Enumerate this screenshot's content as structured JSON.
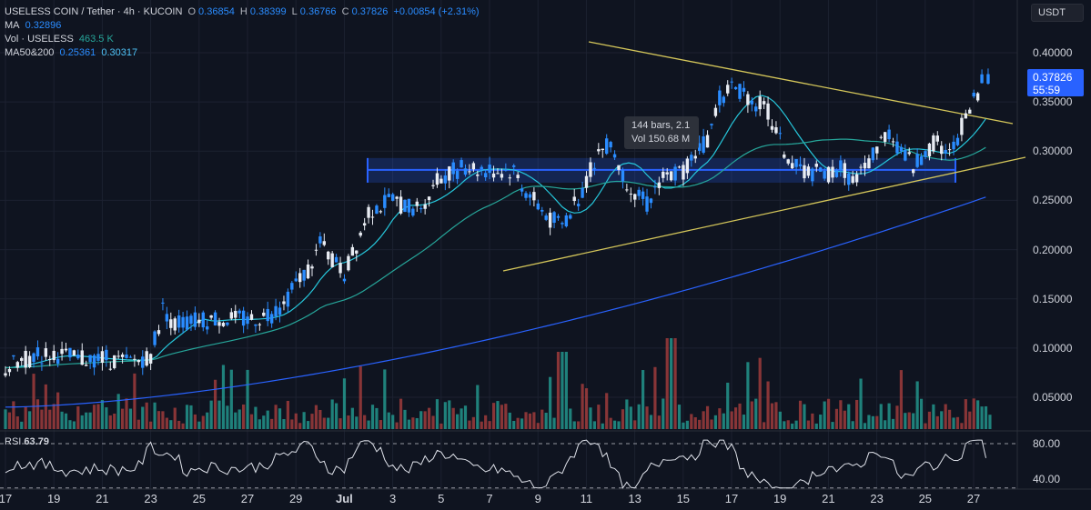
{
  "header": {
    "pair": "USELESS COIN / Tether · 4h · KUCOIN",
    "o_label": "O",
    "o": "0.36854",
    "h_label": "H",
    "h": "0.38399",
    "l_label": "L",
    "l": "0.36766",
    "c_label": "C",
    "c": "0.37826",
    "change": "+0.00854 (+2.31%)",
    "ma_label": "MA",
    "ma": "0.32896",
    "vol_label": "Vol · USELESS",
    "vol": "463.5 K",
    "ma50_label": "MA50&200",
    "ma50": "0.25361",
    "ma200": "0.30317"
  },
  "currency_button": "USDT",
  "price_box": {
    "price": "0.37826",
    "countdown": "55:59"
  },
  "tooltip": {
    "bars": "144 bars, 2.1",
    "vol": "Vol 150.68 M"
  },
  "rsi": {
    "label": "RSI",
    "value": "63.79"
  },
  "price_axis": [
    "0.40000",
    "0.35000",
    "0.30000",
    "0.25000",
    "0.20000",
    "0.15000",
    "0.10000",
    "0.05000"
  ],
  "rsi_axis": [
    "80.00",
    "40.00"
  ],
  "time_axis": [
    "17",
    "19",
    "21",
    "23",
    "25",
    "27",
    "29",
    "Jul",
    "3",
    "5",
    "7",
    "9",
    "11",
    "13",
    "15",
    "17",
    "19",
    "21",
    "23",
    "25",
    "27"
  ],
  "colors": {
    "up": "#2a8cff",
    "down": "#e8ecf3",
    "vol_up": "#26a69a",
    "vol_down": "#b2403f",
    "ma": "#26c6da",
    "ma50": "#26a69a",
    "ma200": "#2962ff",
    "trend": "#d4c65a",
    "zone": "#2962ff"
  },
  "chart_data": {
    "type": "candlestick",
    "symbol": "USELESS COIN / Tether",
    "timeframe": "4h",
    "exchange": "KUCOIN",
    "ylim": [
      0.0,
      0.42
    ],
    "last": {
      "open": 0.36854,
      "high": 0.38399,
      "low": 0.36766,
      "close": 0.37826
    },
    "series": [
      {
        "name": "MA",
        "last": 0.32896
      },
      {
        "name": "MA50",
        "last": 0.25361
      },
      {
        "name": "MA200",
        "last": 0.30317
      }
    ],
    "price_path": [
      [
        17,
        0.08
      ],
      [
        18,
        0.09
      ],
      [
        19,
        0.095
      ],
      [
        20,
        0.088
      ],
      [
        21,
        0.09
      ],
      [
        22,
        0.085
      ],
      [
        23,
        0.092
      ],
      [
        23.5,
        0.14
      ],
      [
        24,
        0.125
      ],
      [
        25,
        0.128
      ],
      [
        26,
        0.13
      ],
      [
        27,
        0.128
      ],
      [
        28,
        0.135
      ],
      [
        28.5,
        0.145
      ],
      [
        29,
        0.165
      ],
      [
        29.5,
        0.18
      ],
      [
        30,
        0.205
      ],
      [
        30.5,
        0.19
      ],
      [
        31,
        0.175
      ],
      [
        31.5,
        0.205
      ],
      [
        32,
        0.24
      ],
      [
        33,
        0.25
      ],
      [
        34,
        0.24
      ],
      [
        34.5,
        0.255
      ],
      [
        35,
        0.275
      ],
      [
        36,
        0.285
      ],
      [
        37,
        0.28
      ],
      [
        38,
        0.28
      ],
      [
        38.5,
        0.26
      ],
      [
        39,
        0.245
      ],
      [
        39.5,
        0.23
      ],
      [
        40,
        0.225
      ],
      [
        40.5,
        0.245
      ],
      [
        41,
        0.27
      ],
      [
        41.5,
        0.3
      ],
      [
        42,
        0.31
      ],
      [
        42.5,
        0.275
      ],
      [
        43,
        0.26
      ],
      [
        43.5,
        0.245
      ],
      [
        44,
        0.27
      ],
      [
        44.5,
        0.275
      ],
      [
        45,
        0.28
      ],
      [
        45.5,
        0.3
      ],
      [
        46,
        0.31
      ],
      [
        46.5,
        0.355
      ],
      [
        47,
        0.365
      ],
      [
        47.5,
        0.36
      ],
      [
        48,
        0.35
      ],
      [
        48.5,
        0.34
      ],
      [
        49,
        0.31
      ],
      [
        49.5,
        0.285
      ],
      [
        50,
        0.28
      ],
      [
        51,
        0.275
      ],
      [
        51.5,
        0.285
      ],
      [
        52,
        0.27
      ],
      [
        52.5,
        0.28
      ],
      [
        53,
        0.305
      ],
      [
        53.5,
        0.32
      ],
      [
        54,
        0.3
      ],
      [
        54.5,
        0.285
      ],
      [
        55,
        0.3
      ],
      [
        55.5,
        0.31
      ],
      [
        56,
        0.295
      ],
      [
        56.5,
        0.325
      ],
      [
        57,
        0.35
      ],
      [
        57.5,
        0.378
      ]
    ],
    "volume_profile": "higher volume near Jul 11-12 and late Jul 26",
    "rsi": {
      "value": 63.79,
      "levels": [
        80,
        40
      ]
    }
  }
}
